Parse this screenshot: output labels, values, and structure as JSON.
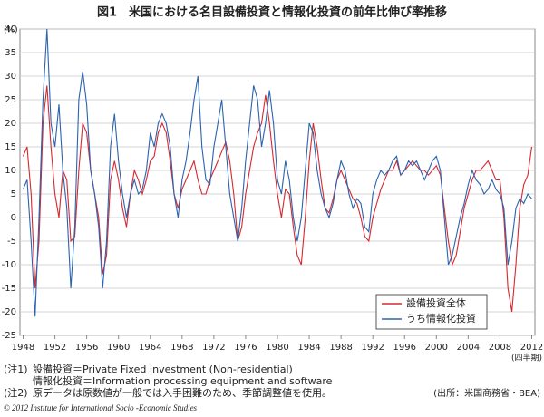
{
  "chart_data": {
    "type": "line",
    "title": "図1　米国における名目設備投資と情報化投資の前年比伸び率推移",
    "y_unit_label": "(%)",
    "x_unit_label": "(四半期)",
    "x": [
      1948,
      1948.5,
      1949,
      1949.5,
      1950,
      1950.5,
      1951,
      1951.5,
      1952,
      1952.5,
      1953,
      1953.5,
      1954,
      1954.5,
      1955,
      1955.5,
      1956,
      1956.5,
      1957,
      1957.5,
      1958,
      1958.5,
      1959,
      1959.5,
      1960,
      1960.5,
      1961,
      1961.5,
      1962,
      1962.5,
      1963,
      1963.5,
      1964,
      1964.5,
      1965,
      1965.5,
      1966,
      1966.5,
      1967,
      1967.5,
      1968,
      1968.5,
      1969,
      1969.5,
      1970,
      1970.5,
      1971,
      1971.5,
      1972,
      1972.5,
      1973,
      1973.5,
      1974,
      1974.5,
      1975,
      1975.5,
      1976,
      1976.5,
      1977,
      1977.5,
      1978,
      1978.5,
      1979,
      1979.5,
      1980,
      1980.5,
      1981,
      1981.5,
      1982,
      1982.5,
      1983,
      1983.5,
      1984,
      1984.5,
      1985,
      1985.5,
      1986,
      1986.5,
      1987,
      1987.5,
      1988,
      1988.5,
      1989,
      1989.5,
      1990,
      1990.5,
      1991,
      1991.5,
      1992,
      1992.5,
      1993,
      1993.5,
      1994,
      1994.5,
      1995,
      1995.5,
      1996,
      1996.5,
      1997,
      1997.5,
      1998,
      1998.5,
      1999,
      1999.5,
      2000,
      2000.5,
      2001,
      2001.5,
      2002,
      2002.5,
      2003,
      2003.5,
      2004,
      2004.5,
      2005,
      2005.5,
      2006,
      2006.5,
      2007,
      2007.5,
      2008,
      2008.5,
      2009,
      2009.5,
      2010,
      2010.5,
      2011,
      2011.5,
      2012
    ],
    "series": [
      {
        "name": "設備投資全体",
        "color": "#d7282f",
        "values": [
          13,
          15,
          5,
          -15,
          -5,
          20,
          28,
          15,
          5,
          0,
          10,
          8,
          -5,
          -4,
          10,
          20,
          18,
          10,
          5,
          0,
          -12,
          -8,
          8,
          12,
          8,
          2,
          -2,
          5,
          10,
          8,
          5,
          8,
          12,
          13,
          18,
          20,
          18,
          12,
          5,
          2,
          6,
          8,
          10,
          12,
          8,
          5,
          5,
          8,
          10,
          12,
          14,
          16,
          12,
          5,
          -5,
          -2,
          5,
          10,
          15,
          18,
          20,
          26,
          20,
          12,
          5,
          0,
          6,
          5,
          -2,
          -8,
          -10,
          0,
          12,
          20,
          15,
          8,
          2,
          1,
          4,
          8,
          10,
          8,
          6,
          4,
          3,
          0,
          -4,
          -5,
          0,
          3,
          6,
          8,
          10,
          10,
          12,
          9,
          10,
          11,
          12,
          11,
          10,
          10,
          9,
          10,
          11,
          9,
          2,
          -5,
          -10,
          -8,
          -3,
          2,
          5,
          8,
          10,
          10,
          11,
          12,
          10,
          8,
          8,
          0,
          -15,
          -20,
          -10,
          2,
          7,
          9,
          15
        ]
      },
      {
        "name": "うち情報化投資",
        "color": "#2a63b0",
        "values": [
          6,
          8,
          -5,
          -21,
          0,
          25,
          40,
          20,
          15,
          24,
          10,
          2,
          -15,
          -2,
          25,
          31,
          24,
          10,
          5,
          -2,
          -15,
          -5,
          15,
          22,
          12,
          5,
          0,
          5,
          8,
          5,
          6,
          10,
          18,
          15,
          20,
          22,
          20,
          15,
          5,
          0,
          8,
          12,
          18,
          25,
          30,
          15,
          8,
          7,
          15,
          20,
          25,
          15,
          5,
          0,
          -5,
          2,
          12,
          20,
          28,
          25,
          15,
          20,
          27,
          20,
          8,
          5,
          12,
          8,
          0,
          -5,
          0,
          10,
          20,
          18,
          10,
          5,
          2,
          0,
          3,
          8,
          12,
          10,
          5,
          2,
          4,
          3,
          -2,
          -3,
          5,
          8,
          10,
          9,
          10,
          12,
          13,
          9,
          10,
          12,
          11,
          12,
          10,
          8,
          10,
          12,
          13,
          10,
          0,
          -10,
          -8,
          -4,
          0,
          3,
          7,
          10,
          8,
          7,
          5,
          6,
          8,
          6,
          5,
          2,
          -10,
          -5,
          2,
          4,
          3,
          5,
          4
        ]
      }
    ],
    "xlim": [
      1947.6,
      2012.4
    ],
    "xticks": [
      1948,
      1952,
      1956,
      1960,
      1964,
      1968,
      1972,
      1976,
      1980,
      1984,
      1988,
      1992,
      1996,
      2000,
      2004,
      2008,
      2012
    ],
    "ylim": [
      -25,
      40
    ],
    "yticks": [
      -25,
      -20,
      -15,
      -10,
      -5,
      0,
      5,
      10,
      15,
      20,
      25,
      30,
      35,
      40
    ],
    "grid": true,
    "legend": "lower right",
    "notes": [
      "(注1)",
      "設備投資＝Private Fixed Investment (Non-residential)",
      "情報化投資＝Information processing equipment and software",
      "(注2)",
      "原データは原数値が一般では入手困難のため、季節調整値を使用。"
    ],
    "source": "(出所：米国商務省・BEA)",
    "copyright": "© 2012 Institute for International Socio -Economic Studies"
  }
}
